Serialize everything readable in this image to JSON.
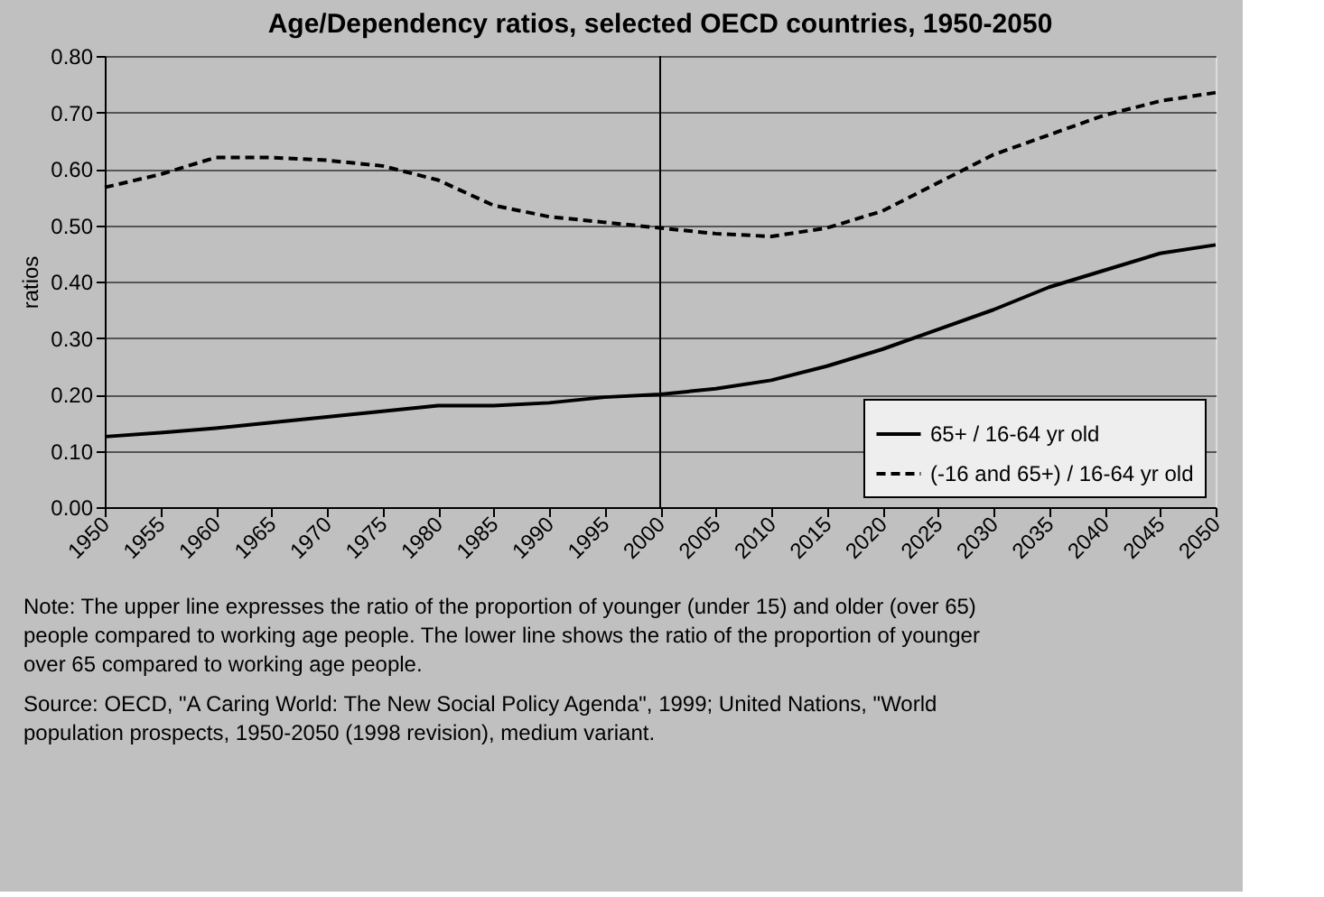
{
  "chart_data": {
    "type": "line",
    "title": "Age/Dependency ratios, selected OECD countries, 1950-2050",
    "ylabel": "ratios",
    "x": [
      1950,
      1955,
      1960,
      1965,
      1970,
      1975,
      1980,
      1985,
      1990,
      1995,
      2000,
      2005,
      2010,
      2015,
      2020,
      2025,
      2030,
      2035,
      2040,
      2045,
      2050
    ],
    "series": [
      {
        "name": "65+ / 16-64 yr old",
        "color": "#000000",
        "line_style": "solid",
        "values": [
          0.125,
          0.132,
          0.14,
          0.15,
          0.16,
          0.17,
          0.18,
          0.18,
          0.185,
          0.195,
          0.2,
          0.21,
          0.225,
          0.25,
          0.28,
          0.315,
          0.35,
          0.39,
          0.42,
          0.45,
          0.465
        ]
      },
      {
        "name": "(-16 and 65+) / 16-64 yr old",
        "color": "#000000",
        "line_style": "dashed",
        "values": [
          0.567,
          0.59,
          0.62,
          0.62,
          0.615,
          0.605,
          0.58,
          0.535,
          0.515,
          0.505,
          0.495,
          0.485,
          0.48,
          0.495,
          0.525,
          0.575,
          0.625,
          0.66,
          0.695,
          0.72,
          0.735
        ]
      }
    ],
    "xlim": [
      1950,
      2050
    ],
    "xticks": [
      1950,
      1955,
      1960,
      1965,
      1970,
      1975,
      1980,
      1985,
      1990,
      1995,
      2000,
      2005,
      2010,
      2015,
      2020,
      2025,
      2030,
      2035,
      2040,
      2045,
      2050
    ],
    "ylim": [
      0,
      0.8
    ],
    "yticks": [
      {
        "value": 0,
        "label": "0.00"
      },
      {
        "value": 0.1,
        "label": "0.10"
      },
      {
        "value": 0.2,
        "label": "0.20"
      },
      {
        "value": 0.3,
        "label": "0.30"
      },
      {
        "value": 0.4,
        "label": "0.40"
      },
      {
        "value": 0.5,
        "label": "0.50"
      },
      {
        "value": 0.6,
        "label": "0.60"
      },
      {
        "value": 0.7,
        "label": "0.70"
      },
      {
        "value": 0.8,
        "label": "0.80"
      }
    ],
    "ref_lines": [
      {
        "axis": "x",
        "value": 2000,
        "color": "#000000"
      }
    ],
    "grid": "y",
    "legend": "bottom right",
    "marker": "none",
    "annotations": [
      "Note: The upper line expresses the ratio of the proportion of younger (under 15) and older (over 65) people compared to working age people.  The lower line shows the ratio of the proportion of younger over 65 compared to working age people.",
      "Source: OECD, \"A Caring World: The New Social Policy Agenda\", 1999; United Nations, \"World population prospects, 1950-2050 (1998 revision), medium variant."
    ]
  }
}
